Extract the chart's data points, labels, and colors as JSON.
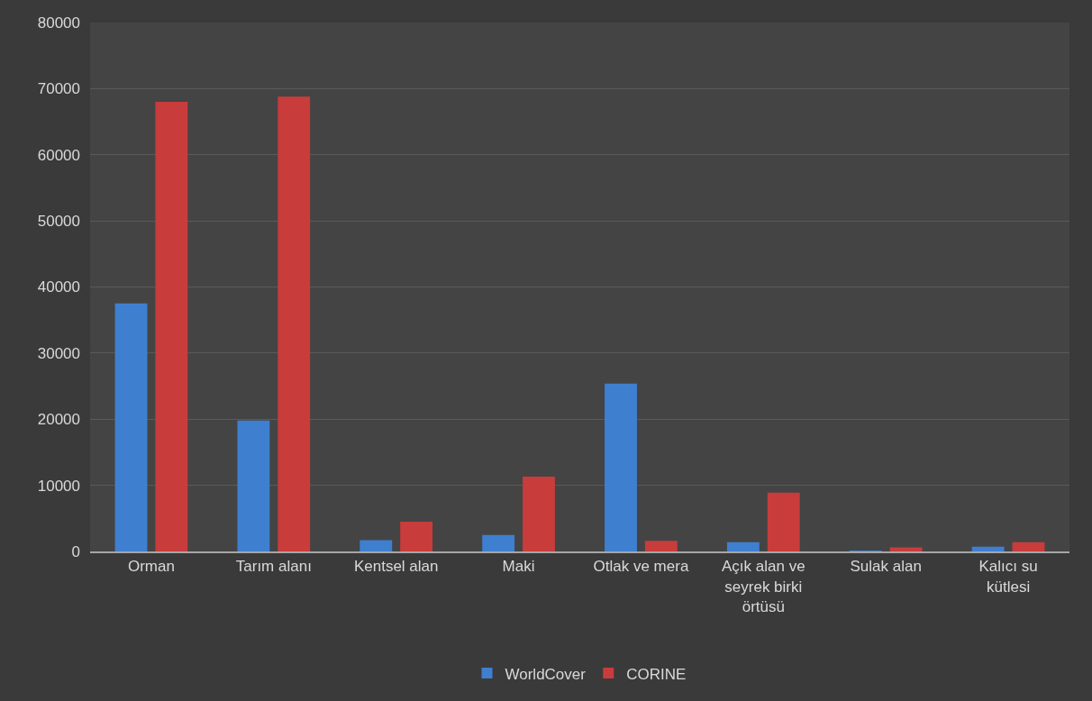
{
  "chart_data": {
    "type": "bar",
    "categories": [
      "Orman",
      "Tarım alanı",
      "Kentsel alan",
      "Maki",
      "Otlak ve mera",
      "Açık alan ve seyrek birki örtüsü",
      "Sulak alan",
      "Kalıcı su kütlesi"
    ],
    "series": [
      {
        "name": "WorldCover",
        "color": "#3f7fd0",
        "values": [
          37500,
          19800,
          1700,
          2500,
          25400,
          1400,
          100,
          700
        ]
      },
      {
        "name": "CORINE",
        "color": "#c83c3c",
        "values": [
          68000,
          68800,
          4500,
          11300,
          1600,
          8900,
          600,
          1400
        ]
      }
    ],
    "ylim": [
      0,
      80000
    ],
    "yticks": [
      0,
      10000,
      20000,
      30000,
      40000,
      50000,
      60000,
      70000,
      80000
    ],
    "grid": "y",
    "legend": "bottom"
  }
}
